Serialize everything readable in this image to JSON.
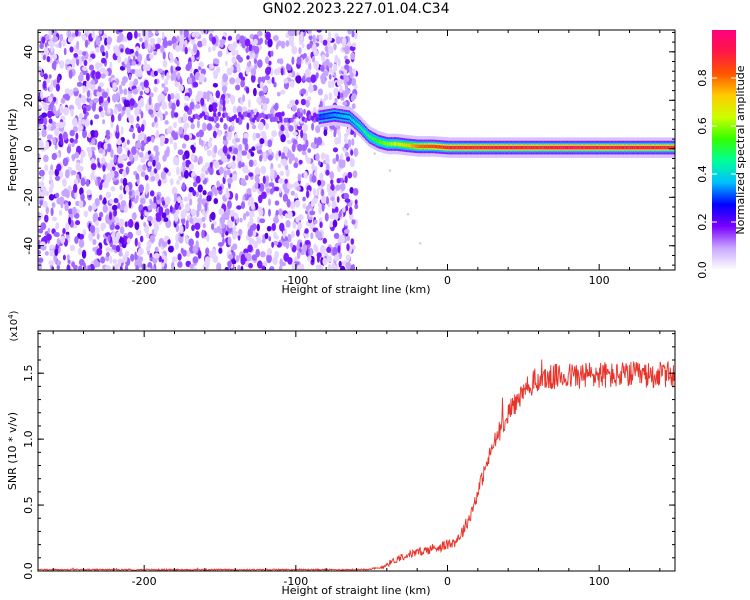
{
  "figure_title": "GN02.2023.227.01.04.C34",
  "chart_data": [
    {
      "type": "heatmap",
      "xlabel": "Height of straight line (km)",
      "ylabel": "Frequency (Hz)",
      "xlim": [
        -270,
        150
      ],
      "ylim": [
        -50,
        49
      ],
      "x_ticks": [
        -200,
        -100,
        0,
        100
      ],
      "x_tick_labels": [
        "-200",
        "-100",
        "0",
        "100"
      ],
      "y_ticks": [
        -40,
        -20,
        0,
        20,
        40
      ],
      "y_tick_labels": [
        "-40",
        "-20",
        "0",
        "20",
        "40"
      ],
      "noise_region_x": [
        -270,
        -60
      ],
      "ridge": {
        "x": [
          -85,
          -75,
          -65,
          -58,
          -52,
          -46,
          -40,
          -34,
          -28,
          -20,
          -10,
          0,
          20,
          40,
          60,
          80,
          100,
          120,
          150
        ],
        "y": [
          13,
          14,
          13,
          9,
          5,
          3,
          2,
          2,
          1.5,
          1,
          1,
          0.5,
          0.5,
          0.5,
          0.5,
          0.5,
          0.5,
          0.5,
          0.5
        ],
        "amplitude": [
          0.3,
          0.35,
          0.4,
          0.45,
          0.5,
          0.55,
          0.6,
          0.65,
          0.7,
          0.8,
          0.85,
          0.9,
          0.9,
          0.92,
          0.9,
          0.95,
          0.9,
          0.92,
          0.9
        ]
      },
      "colorbar": {
        "label": "Normalized spectral amplitude",
        "range": [
          0,
          1
        ],
        "ticks": [
          0.0,
          0.2,
          0.4,
          0.6,
          0.8
        ],
        "tick_labels": [
          "0.0",
          "0.2",
          "0.4",
          "0.6",
          "0.8"
        ],
        "colors": [
          "#ffffff",
          "#c9a8ff",
          "#7a00ff",
          "#0000ff",
          "#00bfff",
          "#00ff99",
          "#33ff00",
          "#ccff00",
          "#ffcc00",
          "#ff5500",
          "#ff1744",
          "#ff0080"
        ]
      }
    },
    {
      "type": "line",
      "xlabel": "Height of straight line (km)",
      "ylabel": "SNR (10 * v/v)",
      "y_scale_label": "(x10",
      "y_scale_exponent": "4",
      "y_scale_close": ")",
      "xlim": [
        -270,
        150
      ],
      "ylim": [
        0,
        1.82
      ],
      "x_ticks": [
        -200,
        -100,
        0,
        100
      ],
      "x_tick_labels": [
        "-200",
        "-100",
        "0",
        "100"
      ],
      "y_ticks": [
        0.0,
        0.5,
        1.0,
        1.5
      ],
      "y_tick_labels": [
        "0.0",
        "0.5",
        "1.0",
        "1.5"
      ],
      "series": [
        {
          "color": "#e8332a",
          "x": [
            -270,
            -200,
            -100,
            -60,
            -45,
            -40,
            -30,
            -20,
            -10,
            0,
            5,
            10,
            15,
            20,
            25,
            30,
            35,
            40,
            45,
            50,
            55,
            60,
            70,
            80,
            90,
            100,
            110,
            120,
            130,
            140,
            150
          ],
          "y": [
            0.01,
            0.01,
            0.01,
            0.01,
            0.02,
            0.05,
            0.11,
            0.14,
            0.17,
            0.2,
            0.22,
            0.3,
            0.42,
            0.6,
            0.78,
            0.95,
            1.08,
            1.2,
            1.28,
            1.35,
            1.42,
            1.45,
            1.47,
            1.48,
            1.48,
            1.49,
            1.48,
            1.49,
            1.48,
            1.49,
            1.48
          ],
          "noise_amplitude": [
            0.005,
            0.005,
            0.005,
            0.005,
            0.01,
            0.02,
            0.03,
            0.03,
            0.04,
            0.04,
            0.04,
            0.05,
            0.05,
            0.06,
            0.06,
            0.07,
            0.08,
            0.08,
            0.09,
            0.09,
            0.1,
            0.1,
            0.1,
            0.1,
            0.11,
            0.11,
            0.1,
            0.1,
            0.1,
            0.1,
            0.1
          ]
        }
      ]
    }
  ]
}
